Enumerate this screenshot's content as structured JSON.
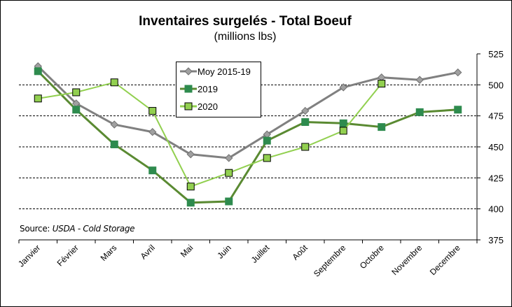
{
  "chart_data": {
    "type": "line",
    "title": "Inventaires surgelés - Total Boeuf",
    "subtitle": "(millions lbs)",
    "source_label": "Source:",
    "source_value": "USDA - Cold Storage",
    "categories": [
      "Janvier",
      "Février",
      "Mars",
      "Avril",
      "Mai",
      "Juin",
      "Juillet",
      "Août",
      "Septembre",
      "Octobre",
      "Novembre",
      "Decembre"
    ],
    "y_axis": {
      "position": "right",
      "ylim": [
        375,
        525
      ],
      "ticks": [
        375,
        400,
        425,
        450,
        475,
        500,
        525
      ]
    },
    "grid": "horizontal dashed",
    "legend_placement": "top-center",
    "series": [
      {
        "name": "Moy 2015-19",
        "color": "#808080",
        "marker": "diamond",
        "marker_color": "#a0a0a0",
        "values": [
          515,
          485,
          468,
          462,
          444,
          441,
          460,
          479,
          498,
          506,
          504,
          510
        ]
      },
      {
        "name": "2019",
        "color": "#5a8a32",
        "marker": "square",
        "marker_color": "#2e8b4e",
        "values": [
          511,
          480,
          452,
          431,
          405,
          406,
          455,
          470,
          469,
          466,
          478,
          480
        ]
      },
      {
        "name": "2020",
        "color": "#92d050",
        "marker": "square",
        "marker_color": "#92d050",
        "values": [
          489,
          494,
          502,
          479,
          418,
          429,
          441,
          450,
          463,
          501,
          null,
          null
        ]
      }
    ]
  }
}
